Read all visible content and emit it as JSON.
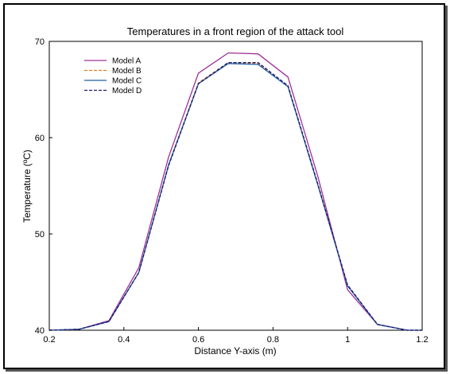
{
  "chart_data": {
    "type": "line",
    "title": "Temperatures in a front region of the attack tool",
    "xlabel": "Distance Y-axis (m)",
    "ylabel": "Temperature (ºC)",
    "xlim": [
      0.2,
      1.2
    ],
    "ylim": [
      40,
      70
    ],
    "x_ticks": [
      "0.2",
      "0.4",
      "0.6",
      "0.8",
      "1",
      "1.2"
    ],
    "y_ticks": [
      "40",
      "50",
      "60",
      "70"
    ],
    "grid": false,
    "legend_position": "top-left",
    "series": [
      {
        "name": "Model A",
        "color": "#a0309a",
        "dash": "solid",
        "x": [
          0.2,
          0.28,
          0.36,
          0.44,
          0.52,
          0.6,
          0.68,
          0.76,
          0.84,
          0.92,
          1.0,
          1.08,
          1.16,
          1.2
        ],
        "y": [
          40.0,
          40.1,
          41.0,
          46.5,
          58.0,
          66.7,
          68.8,
          68.7,
          66.3,
          56.0,
          44.2,
          40.6,
          40.0,
          40.0
        ]
      },
      {
        "name": "Model B",
        "color": "#e07b20",
        "dash": "dashed",
        "x": [
          0.2,
          0.28,
          0.36,
          0.44,
          0.52,
          0.6,
          0.68,
          0.76,
          0.84,
          0.92,
          1.0,
          1.08,
          1.16,
          1.2
        ],
        "y": [
          40.0,
          40.1,
          40.9,
          46.0,
          57.2,
          65.7,
          67.8,
          67.7,
          65.4,
          55.2,
          44.6,
          40.6,
          40.0,
          40.0
        ]
      },
      {
        "name": "Model C",
        "color": "#1d5fa8",
        "dash": "solid",
        "x": [
          0.2,
          0.28,
          0.36,
          0.44,
          0.52,
          0.6,
          0.68,
          0.76,
          0.84,
          0.92,
          1.0,
          1.08,
          1.16,
          1.2
        ],
        "y": [
          40.0,
          40.1,
          40.9,
          46.0,
          57.2,
          65.6,
          67.7,
          67.6,
          65.3,
          55.1,
          44.6,
          40.6,
          40.0,
          40.0
        ]
      },
      {
        "name": "Model D",
        "color": "#1a1a6e",
        "dash": "dashed",
        "x": [
          0.2,
          0.28,
          0.36,
          0.44,
          0.52,
          0.6,
          0.68,
          0.76,
          0.84,
          0.92,
          1.0,
          1.08,
          1.16,
          1.2
        ],
        "y": [
          40.0,
          40.1,
          40.9,
          46.0,
          57.1,
          65.6,
          67.8,
          67.8,
          65.4,
          55.2,
          44.7,
          40.6,
          40.0,
          40.0
        ]
      }
    ]
  }
}
